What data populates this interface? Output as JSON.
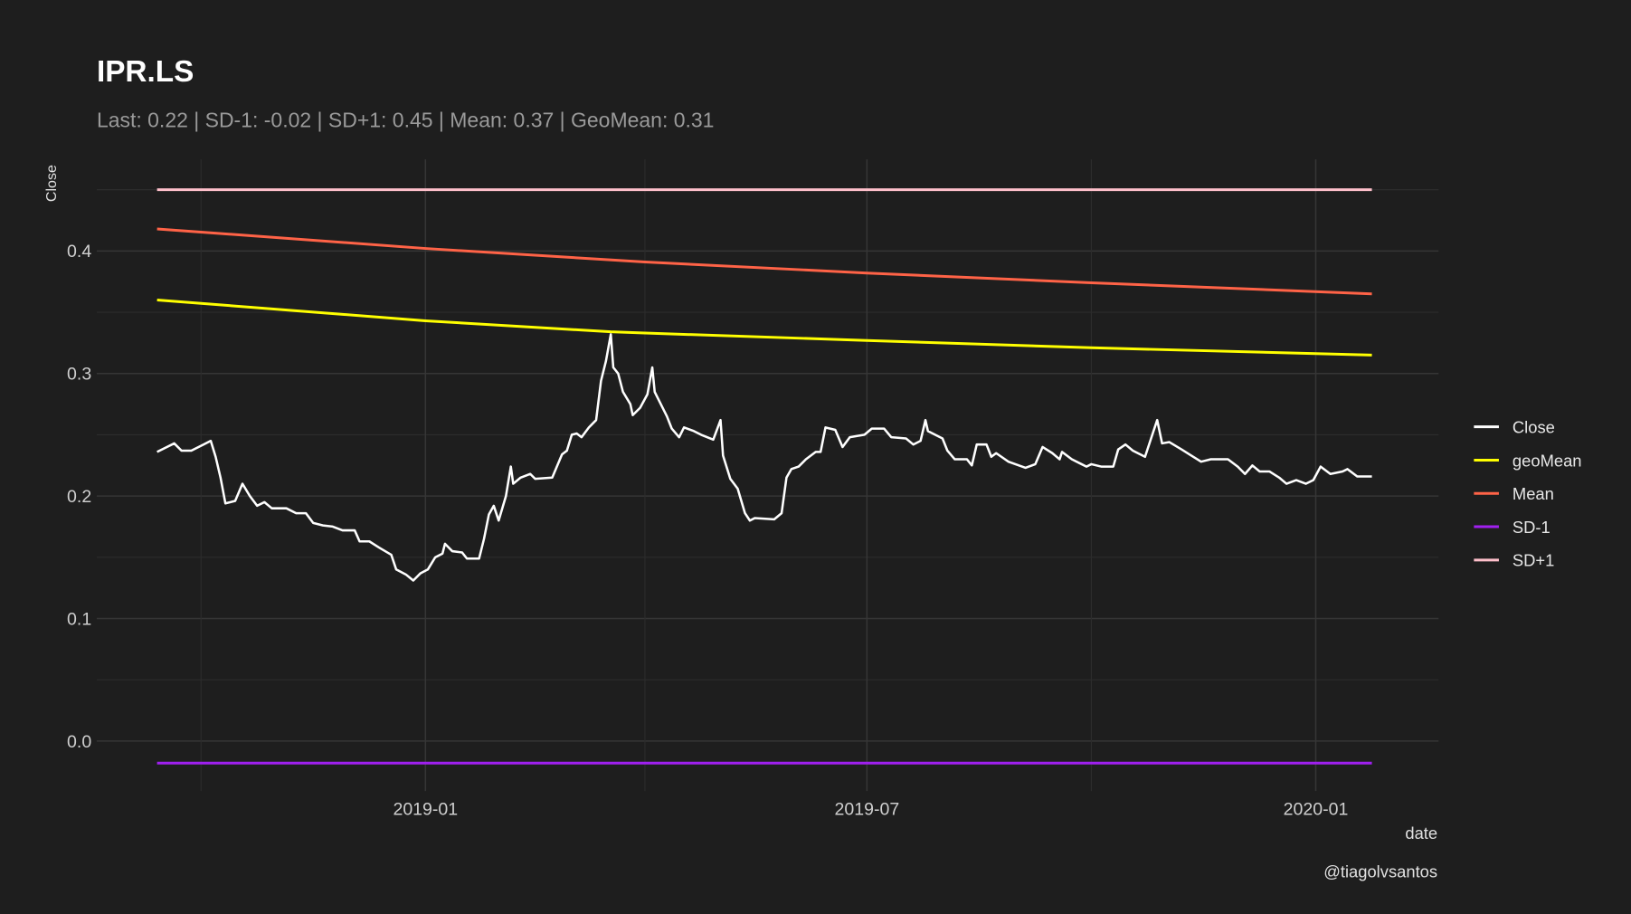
{
  "chart_data": {
    "type": "line",
    "title": "IPR.LS",
    "subtitle": "Last: 0.22 | SD-1: -0.02 | SD+1: 0.45 | Mean: 0.37 | GeoMean: 0.31",
    "xlabel": "date",
    "ylabel": "Close",
    "caption": "@tiagolvsantos",
    "ylim": [
      -0.04,
      0.475
    ],
    "xlim": [
      "2018-08-23",
      "2020-02-09"
    ],
    "grid": true,
    "legend_position": "right",
    "x_ticks": [
      "2019-01-01",
      "2019-07-01",
      "2020-01-01"
    ],
    "x_tick_labels": [
      "2019-01",
      "2019-07",
      "2020-01"
    ],
    "x_minor_ticks": [
      "2018-10-01",
      "2019-04-01",
      "2019-10-01"
    ],
    "y_ticks": [
      0.0,
      0.1,
      0.2,
      0.3,
      0.4
    ],
    "y_tick_labels": [
      "0.0",
      "0.1",
      "0.2",
      "0.3",
      "0.4"
    ],
    "legend": [
      {
        "name": "Close",
        "color": "#ffffff"
      },
      {
        "name": "geoMean",
        "color": "#ffff00"
      },
      {
        "name": "Mean",
        "color": "#ff6347"
      },
      {
        "name": "SD-1",
        "color": "#a020f0"
      },
      {
        "name": "SD+1",
        "color": "#ffc0cb"
      }
    ],
    "series": [
      {
        "name": "SD+1",
        "color": "#ffc0cb",
        "points": [
          [
            "2018-09-13",
            0.45
          ],
          [
            "2020-01-24",
            0.45
          ]
        ]
      },
      {
        "name": "SD-1",
        "color": "#a020f0",
        "points": [
          [
            "2018-09-13",
            -0.018
          ],
          [
            "2020-01-24",
            -0.018
          ]
        ]
      },
      {
        "name": "Mean",
        "color": "#ff6347",
        "points": [
          [
            "2018-09-13",
            0.418
          ],
          [
            "2019-01-01",
            0.402
          ],
          [
            "2019-04-01",
            0.391
          ],
          [
            "2019-07-01",
            0.382
          ],
          [
            "2019-10-01",
            0.374
          ],
          [
            "2020-01-24",
            0.365
          ]
        ]
      },
      {
        "name": "geoMean",
        "color": "#ffff00",
        "points": [
          [
            "2018-09-13",
            0.36
          ],
          [
            "2019-01-01",
            0.343
          ],
          [
            "2019-03-18",
            0.334
          ],
          [
            "2019-04-01",
            0.333
          ],
          [
            "2019-07-01",
            0.327
          ],
          [
            "2019-10-01",
            0.321
          ],
          [
            "2020-01-24",
            0.315
          ]
        ]
      },
      {
        "name": "Close",
        "color": "#ffffff",
        "points": [
          [
            "2018-09-13",
            0.236
          ],
          [
            "2018-09-17",
            0.24
          ],
          [
            "2018-09-20",
            0.243
          ],
          [
            "2018-09-23",
            0.237
          ],
          [
            "2018-09-27",
            0.237
          ],
          [
            "2018-10-02",
            0.242
          ],
          [
            "2018-10-05",
            0.245
          ],
          [
            "2018-10-07",
            0.232
          ],
          [
            "2018-10-09",
            0.215
          ],
          [
            "2018-10-11",
            0.194
          ],
          [
            "2018-10-15",
            0.196
          ],
          [
            "2018-10-18",
            0.21
          ],
          [
            "2018-10-21",
            0.2
          ],
          [
            "2018-10-24",
            0.192
          ],
          [
            "2018-10-27",
            0.195
          ],
          [
            "2018-10-30",
            0.19
          ],
          [
            "2018-11-05",
            0.19
          ],
          [
            "2018-11-09",
            0.186
          ],
          [
            "2018-11-13",
            0.186
          ],
          [
            "2018-11-16",
            0.178
          ],
          [
            "2018-11-20",
            0.176
          ],
          [
            "2018-11-24",
            0.175
          ],
          [
            "2018-11-28",
            0.172
          ],
          [
            "2018-12-03",
            0.172
          ],
          [
            "2018-12-05",
            0.163
          ],
          [
            "2018-12-09",
            0.163
          ],
          [
            "2018-12-13",
            0.158
          ],
          [
            "2018-12-18",
            0.152
          ],
          [
            "2018-12-20",
            0.14
          ],
          [
            "2018-12-24",
            0.136
          ],
          [
            "2018-12-27",
            0.131
          ],
          [
            "2018-12-30",
            0.137
          ],
          [
            "2019-01-02",
            0.14
          ],
          [
            "2019-01-05",
            0.15
          ],
          [
            "2019-01-08",
            0.153
          ],
          [
            "2019-01-09",
            0.161
          ],
          [
            "2019-01-12",
            0.155
          ],
          [
            "2019-01-16",
            0.154
          ],
          [
            "2019-01-18",
            0.149
          ],
          [
            "2019-01-23",
            0.149
          ],
          [
            "2019-01-25",
            0.165
          ],
          [
            "2019-01-27",
            0.185
          ],
          [
            "2019-01-29",
            0.192
          ],
          [
            "2019-01-31",
            0.18
          ],
          [
            "2019-02-03",
            0.2
          ],
          [
            "2019-02-05",
            0.224
          ],
          [
            "2019-02-06",
            0.21
          ],
          [
            "2019-02-09",
            0.215
          ],
          [
            "2019-02-13",
            0.218
          ],
          [
            "2019-02-15",
            0.214
          ],
          [
            "2019-02-22",
            0.215
          ],
          [
            "2019-02-26",
            0.234
          ],
          [
            "2019-02-28",
            0.237
          ],
          [
            "2019-03-02",
            0.25
          ],
          [
            "2019-03-04",
            0.251
          ],
          [
            "2019-03-06",
            0.248
          ],
          [
            "2019-03-09",
            0.256
          ],
          [
            "2019-03-12",
            0.262
          ],
          [
            "2019-03-14",
            0.294
          ],
          [
            "2019-03-16",
            0.31
          ],
          [
            "2019-03-18",
            0.332
          ],
          [
            "2019-03-19",
            0.305
          ],
          [
            "2019-03-21",
            0.3
          ],
          [
            "2019-03-23",
            0.285
          ],
          [
            "2019-03-26",
            0.275
          ],
          [
            "2019-03-27",
            0.266
          ],
          [
            "2019-03-30",
            0.272
          ],
          [
            "2019-04-02",
            0.283
          ],
          [
            "2019-04-04",
            0.305
          ],
          [
            "2019-04-05",
            0.285
          ],
          [
            "2019-04-10",
            0.265
          ],
          [
            "2019-04-12",
            0.255
          ],
          [
            "2019-04-15",
            0.248
          ],
          [
            "2019-04-17",
            0.256
          ],
          [
            "2019-04-21",
            0.253
          ],
          [
            "2019-04-24",
            0.25
          ],
          [
            "2019-04-29",
            0.246
          ],
          [
            "2019-05-02",
            0.262
          ],
          [
            "2019-05-03",
            0.233
          ],
          [
            "2019-05-06",
            0.214
          ],
          [
            "2019-05-09",
            0.206
          ],
          [
            "2019-05-12",
            0.186
          ],
          [
            "2019-05-14",
            0.18
          ],
          [
            "2019-05-16",
            0.182
          ],
          [
            "2019-05-24",
            0.181
          ],
          [
            "2019-05-27",
            0.186
          ],
          [
            "2019-05-29",
            0.215
          ],
          [
            "2019-05-31",
            0.222
          ],
          [
            "2019-06-03",
            0.224
          ],
          [
            "2019-06-06",
            0.23
          ],
          [
            "2019-06-10",
            0.236
          ],
          [
            "2019-06-12",
            0.236
          ],
          [
            "2019-06-14",
            0.256
          ],
          [
            "2019-06-18",
            0.254
          ],
          [
            "2019-06-21",
            0.24
          ],
          [
            "2019-06-24",
            0.248
          ],
          [
            "2019-06-30",
            0.25
          ],
          [
            "2019-07-03",
            0.255
          ],
          [
            "2019-07-08",
            0.255
          ],
          [
            "2019-07-11",
            0.248
          ],
          [
            "2019-07-17",
            0.247
          ],
          [
            "2019-07-20",
            0.242
          ],
          [
            "2019-07-23",
            0.245
          ],
          [
            "2019-07-25",
            0.262
          ],
          [
            "2019-07-26",
            0.253
          ],
          [
            "2019-08-01",
            0.247
          ],
          [
            "2019-08-03",
            0.237
          ],
          [
            "2019-08-06",
            0.23
          ],
          [
            "2019-08-11",
            0.23
          ],
          [
            "2019-08-13",
            0.225
          ],
          [
            "2019-08-15",
            0.242
          ],
          [
            "2019-08-19",
            0.242
          ],
          [
            "2019-08-21",
            0.232
          ],
          [
            "2019-08-23",
            0.235
          ],
          [
            "2019-08-28",
            0.228
          ],
          [
            "2019-09-04",
            0.223
          ],
          [
            "2019-09-08",
            0.226
          ],
          [
            "2019-09-11",
            0.24
          ],
          [
            "2019-09-15",
            0.235
          ],
          [
            "2019-09-18",
            0.23
          ],
          [
            "2019-09-19",
            0.236
          ],
          [
            "2019-09-23",
            0.23
          ],
          [
            "2019-09-27",
            0.226
          ],
          [
            "2019-09-29",
            0.224
          ],
          [
            "2019-10-01",
            0.226
          ],
          [
            "2019-10-05",
            0.224
          ],
          [
            "2019-10-10",
            0.224
          ],
          [
            "2019-10-12",
            0.238
          ],
          [
            "2019-10-15",
            0.242
          ],
          [
            "2019-10-18",
            0.237
          ],
          [
            "2019-10-23",
            0.232
          ],
          [
            "2019-10-26",
            0.25
          ],
          [
            "2019-10-28",
            0.262
          ],
          [
            "2019-10-30",
            0.243
          ],
          [
            "2019-11-02",
            0.244
          ],
          [
            "2019-11-07",
            0.238
          ],
          [
            "2019-11-11",
            0.233
          ],
          [
            "2019-11-15",
            0.228
          ],
          [
            "2019-11-19",
            0.23
          ],
          [
            "2019-11-26",
            0.23
          ],
          [
            "2019-11-30",
            0.224
          ],
          [
            "2019-12-03",
            0.218
          ],
          [
            "2019-12-06",
            0.225
          ],
          [
            "2019-12-09",
            0.22
          ],
          [
            "2019-12-13",
            0.22
          ],
          [
            "2019-12-17",
            0.215
          ],
          [
            "2019-12-20",
            0.21
          ],
          [
            "2019-12-24",
            0.213
          ],
          [
            "2019-12-28",
            0.21
          ],
          [
            "2019-12-31",
            0.213
          ],
          [
            "2020-01-03",
            0.224
          ],
          [
            "2020-01-07",
            0.218
          ],
          [
            "2020-01-12",
            0.22
          ],
          [
            "2020-01-14",
            0.222
          ],
          [
            "2020-01-18",
            0.216
          ],
          [
            "2020-01-24",
            0.216
          ]
        ]
      }
    ]
  }
}
